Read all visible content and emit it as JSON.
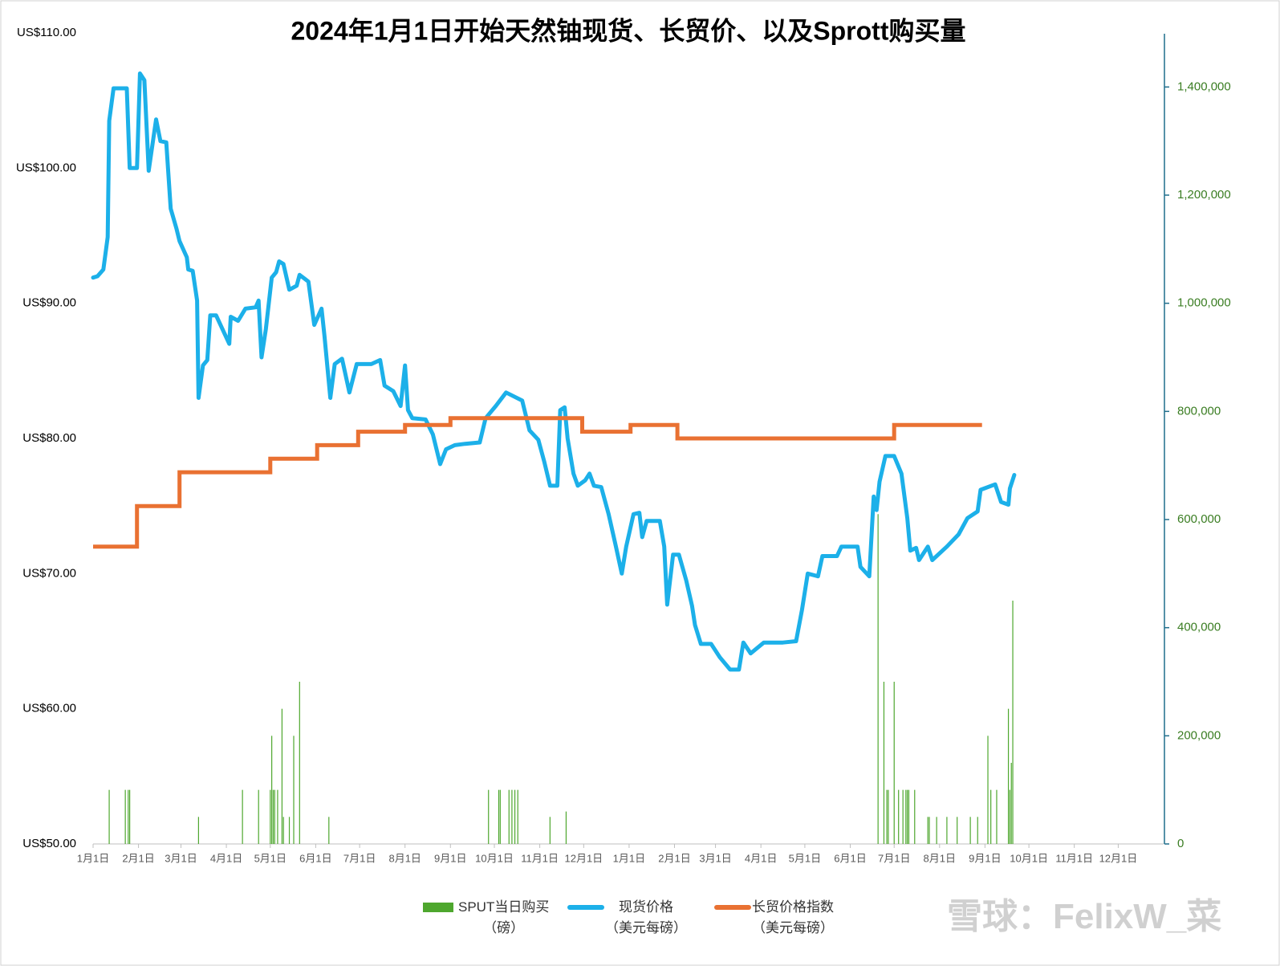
{
  "chart_data": {
    "type": "combo",
    "title": "2024年1月1日开始天然铀现货、长贸价、以及Sprott购买量",
    "watermark": "雪球：FelixW_菜",
    "xlim": [
      0,
      731
    ],
    "xticks": [
      {
        "value": 0,
        "label": "1月1日"
      },
      {
        "value": 31,
        "label": "2月1日"
      },
      {
        "value": 60,
        "label": "3月1日"
      },
      {
        "value": 91,
        "label": "4月1日"
      },
      {
        "value": 121,
        "label": "5月1日"
      },
      {
        "value": 152,
        "label": "6月1日"
      },
      {
        "value": 182,
        "label": "7月1日"
      },
      {
        "value": 213,
        "label": "8月1日"
      },
      {
        "value": 244,
        "label": "9月1日"
      },
      {
        "value": 274,
        "label": "10月1日"
      },
      {
        "value": 305,
        "label": "11月1日"
      },
      {
        "value": 335,
        "label": "12月1日"
      },
      {
        "value": 366,
        "label": "1月1日"
      },
      {
        "value": 397,
        "label": "2月1日"
      },
      {
        "value": 425,
        "label": "3月1日"
      },
      {
        "value": 456,
        "label": "4月1日"
      },
      {
        "value": 486,
        "label": "5月1日"
      },
      {
        "value": 517,
        "label": "6月1日"
      },
      {
        "value": 547,
        "label": "7月1日"
      },
      {
        "value": 578,
        "label": "8月1日"
      },
      {
        "value": 609,
        "label": "9月1日"
      },
      {
        "value": 639,
        "label": "10月1日"
      },
      {
        "value": 670,
        "label": "11月1日"
      },
      {
        "value": 700,
        "label": "12月1日"
      }
    ],
    "ylim": [
      50,
      110
    ],
    "yticks": [
      {
        "value": 50,
        "label": "US$50.00"
      },
      {
        "value": 60,
        "label": "US$60.00"
      },
      {
        "value": 70,
        "label": "US$70.00"
      },
      {
        "value": 80,
        "label": "US$80.00"
      },
      {
        "value": 90,
        "label": "US$90.00"
      },
      {
        "value": 100,
        "label": "US$100.00"
      },
      {
        "value": 110,
        "label": "US$110.00"
      }
    ],
    "y2lim": [
      0,
      1500000
    ],
    "y2ticks": [
      0,
      {
        "value": 200000,
        "label": "200,000"
      },
      {
        "value": 400000,
        "label": "400,000"
      },
      {
        "value": 600000,
        "label": "600,000"
      },
      {
        "value": 800000,
        "label": "800,000"
      },
      {
        "value": 1000000,
        "label": "1,000,000"
      },
      {
        "value": 1200000,
        "label": "1,200,000"
      },
      {
        "value": 1400000,
        "label": "1,400,000"
      }
    ],
    "grid": false,
    "legend": "bottom",
    "series": [
      {
        "name": "SPUT当日购买\n（磅）",
        "type": "bar",
        "axis": "y2",
        "color": "#4ea72e",
        "x": [
          11,
          22,
          24,
          25,
          72,
          102,
          113,
          121,
          122,
          123,
          124,
          126,
          129,
          130,
          134,
          137,
          141,
          161,
          270,
          277,
          278,
          284,
          286,
          288,
          290,
          312,
          323,
          536,
          540,
          542,
          543,
          547,
          550,
          553,
          555,
          556,
          557,
          561,
          570,
          571,
          576,
          583,
          590,
          599,
          604,
          611,
          613,
          617,
          625,
          626,
          627,
          628
        ],
        "values": [
          100000,
          100000,
          100000,
          100000,
          50000,
          100000,
          100000,
          100000,
          200000,
          100000,
          100000,
          100000,
          250000,
          50000,
          50000,
          200000,
          300000,
          50000,
          100000,
          100000,
          100000,
          100000,
          100000,
          100000,
          100000,
          50000,
          60000,
          610000,
          300000,
          100000,
          100000,
          300000,
          100000,
          100000,
          100000,
          100000,
          100000,
          100000,
          50000,
          50000,
          50000,
          50000,
          50000,
          50000,
          50000,
          200000,
          100000,
          100000,
          250000,
          100000,
          150000,
          450000
        ]
      },
      {
        "name": "现货价格\n（美元每磅）",
        "type": "line",
        "color": "#1cb0e9",
        "x": [
          0,
          3,
          7,
          10,
          11,
          14,
          23,
          25,
          30,
          32,
          35,
          38,
          43,
          46,
          50,
          53,
          57,
          59,
          64,
          65,
          68,
          71,
          72,
          75,
          78,
          80,
          84,
          93,
          94,
          99,
          104,
          111,
          113,
          115,
          118,
          122,
          125,
          127,
          130,
          134,
          139,
          141,
          147,
          151,
          156,
          158,
          162,
          165,
          170,
          175,
          180,
          190,
          196,
          199,
          205,
          210,
          213,
          215,
          218,
          227,
          232,
          237,
          241,
          247,
          254,
          264,
          268,
          275,
          282,
          293,
          298,
          304,
          308,
          312,
          317,
          319,
          322,
          324,
          328,
          331,
          336,
          339,
          342,
          347,
          352,
          357,
          361,
          364,
          369,
          373,
          375,
          378,
          387,
          390,
          392,
          396,
          400,
          405,
          409,
          411,
          415,
          422,
          428,
          435,
          441,
          444,
          449,
          458,
          471,
          480,
          484,
          488,
          495,
          498,
          508,
          511,
          522,
          524,
          530,
          533,
          535,
          537,
          541,
          547,
          552,
          556,
          558,
          562,
          564,
          570,
          573,
          583,
          591,
          597,
          604,
          606,
          616,
          620,
          625,
          626,
          629
        ],
        "values": [
          91.9,
          92.0,
          92.5,
          94.9,
          103.5,
          105.9,
          105.9,
          100,
          100,
          107,
          106.5,
          99.8,
          103.6,
          102,
          101.9,
          97,
          95.5,
          94.6,
          93.4,
          92.5,
          92.4,
          90.2,
          83,
          85.4,
          85.8,
          89.1,
          89.1,
          87,
          89,
          88.7,
          89.6,
          89.7,
          90.2,
          86,
          88.1,
          91.9,
          92.3,
          93.1,
          92.9,
          91,
          91.3,
          92.1,
          91.6,
          88.4,
          89.6,
          87.6,
          83,
          85.5,
          85.9,
          83.4,
          85.5,
          85.5,
          85.8,
          83.9,
          83.5,
          82.4,
          85.4,
          82.1,
          81.5,
          81.4,
          80.3,
          78.1,
          79.2,
          79.5,
          79.6,
          79.7,
          81.5,
          82.4,
          83.4,
          82.8,
          80.6,
          79.9,
          78.3,
          76.5,
          76.5,
          82.1,
          82.3,
          80,
          77.4,
          76.5,
          76.9,
          77.4,
          76.5,
          76.4,
          74.4,
          72,
          70,
          72,
          74.4,
          74.5,
          72.7,
          73.9,
          73.9,
          72,
          67.7,
          71.4,
          71.4,
          69.5,
          67.6,
          66.2,
          64.8,
          64.8,
          63.8,
          62.9,
          62.9,
          64.9,
          64.1,
          64.9,
          64.9,
          65,
          67.3,
          70,
          69.8,
          71.3,
          71.3,
          72,
          72,
          70.5,
          69.8,
          75.7,
          74.7,
          76.8,
          78.7,
          78.7,
          77.4,
          74.1,
          71.7,
          71.9,
          71,
          72,
          71,
          72,
          72.9,
          74.1,
          74.6,
          76.2,
          76.6,
          75.3,
          75.1,
          76.3,
          77.3
        ]
      },
      {
        "name": "长贸价格指数\n（美元每磅）",
        "type": "step",
        "color": "#e97132",
        "x": [
          0,
          30,
          59,
          121,
          153,
          181,
          213,
          244,
          334,
          367,
          399,
          547,
          607
        ],
        "values": [
          72,
          75,
          77.5,
          78.5,
          79.5,
          80.5,
          81,
          81.5,
          80.5,
          81,
          80,
          81,
          81
        ]
      }
    ]
  }
}
